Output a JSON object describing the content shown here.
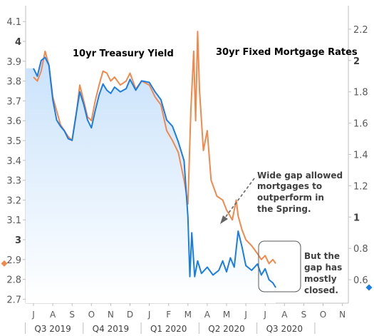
{
  "chart_data": {
    "type": "line",
    "x_unit": "month",
    "months": [
      "J",
      "A",
      "S",
      "O",
      "N",
      "D",
      "J",
      "F",
      "M",
      "A",
      "M",
      "J",
      "J",
      "A",
      "S",
      "O",
      "N"
    ],
    "quarters": [
      "Q3 2019",
      "Q4 2019",
      "Q1 2020",
      "Q2 2020",
      "Q3 2020"
    ],
    "left_axis": {
      "ylim": [
        2.68,
        4.18
      ],
      "ticks": [
        "2.7",
        "2.8",
        "2.9",
        "3",
        "3.1",
        "3.2",
        "3.3",
        "3.4",
        "3.5",
        "3.6",
        "3.7",
        "3.8",
        "3.9",
        "4",
        "4.1"
      ],
      "major": [
        "3",
        "4"
      ]
    },
    "right_axis": {
      "ylim": [
        0.45,
        2.35
      ],
      "ticks": [
        "0.6",
        "0.8",
        "1",
        "1.2",
        "1.4",
        "1.6",
        "1.8",
        "2",
        "2.2"
      ],
      "major": [
        "1",
        "2"
      ]
    },
    "series": [
      {
        "name": "10yr Treasury Yield",
        "color": "#1a7de3",
        "axis": "right",
        "points": [
          [
            0,
            1.95
          ],
          [
            0.2,
            1.9
          ],
          [
            0.4,
            2.0
          ],
          [
            0.6,
            2.02
          ],
          [
            0.8,
            1.97
          ],
          [
            1.0,
            1.75
          ],
          [
            1.2,
            1.62
          ],
          [
            1.4,
            1.58
          ],
          [
            1.6,
            1.55
          ],
          [
            1.8,
            1.5
          ],
          [
            2.0,
            1.49
          ],
          [
            2.2,
            1.65
          ],
          [
            2.4,
            1.8
          ],
          [
            2.6,
            1.72
          ],
          [
            2.8,
            1.62
          ],
          [
            3.0,
            1.57
          ],
          [
            3.2,
            1.68
          ],
          [
            3.4,
            1.78
          ],
          [
            3.6,
            1.85
          ],
          [
            3.8,
            1.81
          ],
          [
            4.0,
            1.79
          ],
          [
            4.2,
            1.83
          ],
          [
            4.5,
            1.8
          ],
          [
            4.8,
            1.82
          ],
          [
            5.0,
            1.88
          ],
          [
            5.3,
            1.81
          ],
          [
            5.6,
            1.87
          ],
          [
            6.0,
            1.86
          ],
          [
            6.3,
            1.8
          ],
          [
            6.6,
            1.75
          ],
          [
            6.9,
            1.62
          ],
          [
            7.2,
            1.58
          ],
          [
            7.5,
            1.48
          ],
          [
            7.8,
            1.36
          ],
          [
            8.0,
            1.0
          ],
          [
            8.1,
            0.62
          ],
          [
            8.2,
            0.9
          ],
          [
            8.35,
            0.62
          ],
          [
            8.5,
            0.72
          ],
          [
            8.7,
            0.64
          ],
          [
            9.0,
            0.68
          ],
          [
            9.3,
            0.63
          ],
          [
            9.6,
            0.66
          ],
          [
            9.8,
            0.72
          ],
          [
            10.0,
            0.65
          ],
          [
            10.2,
            0.74
          ],
          [
            10.4,
            0.68
          ],
          [
            10.6,
            0.91
          ],
          [
            10.8,
            0.81
          ],
          [
            11.0,
            0.69
          ],
          [
            11.3,
            0.66
          ],
          [
            11.6,
            0.7
          ],
          [
            11.8,
            0.63
          ],
          [
            12.0,
            0.67
          ],
          [
            12.2,
            0.6
          ],
          [
            12.4,
            0.58
          ],
          [
            12.55,
            0.55
          ]
        ]
      },
      {
        "name": "30yr Fixed Mortgage Rates",
        "color": "#f2894c",
        "axis": "left",
        "points": [
          [
            0,
            3.82
          ],
          [
            0.2,
            3.8
          ],
          [
            0.4,
            3.85
          ],
          [
            0.6,
            3.95
          ],
          [
            0.8,
            3.88
          ],
          [
            1.0,
            3.72
          ],
          [
            1.2,
            3.65
          ],
          [
            1.4,
            3.58
          ],
          [
            1.6,
            3.55
          ],
          [
            1.8,
            3.52
          ],
          [
            2.0,
            3.5
          ],
          [
            2.2,
            3.62
          ],
          [
            2.4,
            3.78
          ],
          [
            2.6,
            3.7
          ],
          [
            2.8,
            3.62
          ],
          [
            3.0,
            3.6
          ],
          [
            3.2,
            3.7
          ],
          [
            3.4,
            3.78
          ],
          [
            3.6,
            3.85
          ],
          [
            3.8,
            3.84
          ],
          [
            4.0,
            3.8
          ],
          [
            4.2,
            3.82
          ],
          [
            4.5,
            3.78
          ],
          [
            4.8,
            3.8
          ],
          [
            5.0,
            3.84
          ],
          [
            5.3,
            3.76
          ],
          [
            5.6,
            3.8
          ],
          [
            6.0,
            3.78
          ],
          [
            6.3,
            3.72
          ],
          [
            6.6,
            3.68
          ],
          [
            6.9,
            3.55
          ],
          [
            7.2,
            3.5
          ],
          [
            7.5,
            3.44
          ],
          [
            7.8,
            3.3
          ],
          [
            8.0,
            3.18
          ],
          [
            8.15,
            3.65
          ],
          [
            8.3,
            3.95
          ],
          [
            8.4,
            3.6
          ],
          [
            8.5,
            4.05
          ],
          [
            8.6,
            3.75
          ],
          [
            8.8,
            3.45
          ],
          [
            9.0,
            3.55
          ],
          [
            9.2,
            3.3
          ],
          [
            9.5,
            3.22
          ],
          [
            9.8,
            3.2
          ],
          [
            10.0,
            3.15
          ],
          [
            10.3,
            3.1
          ],
          [
            10.5,
            3.2
          ],
          [
            10.6,
            3.12
          ],
          [
            10.8,
            3.05
          ],
          [
            11.0,
            3.0
          ],
          [
            11.3,
            2.97
          ],
          [
            11.6,
            2.93
          ],
          [
            11.8,
            2.9
          ],
          [
            12.0,
            2.92
          ],
          [
            12.2,
            2.88
          ],
          [
            12.4,
            2.9
          ],
          [
            12.55,
            2.88
          ]
        ]
      }
    ],
    "annotations": [
      {
        "lines": [
          "Wide gap allowed",
          "mortgages to",
          "outperform in",
          "the Spring."
        ]
      },
      {
        "lines": [
          "But the",
          "gap has",
          "mostly",
          "closed."
        ]
      }
    ]
  }
}
